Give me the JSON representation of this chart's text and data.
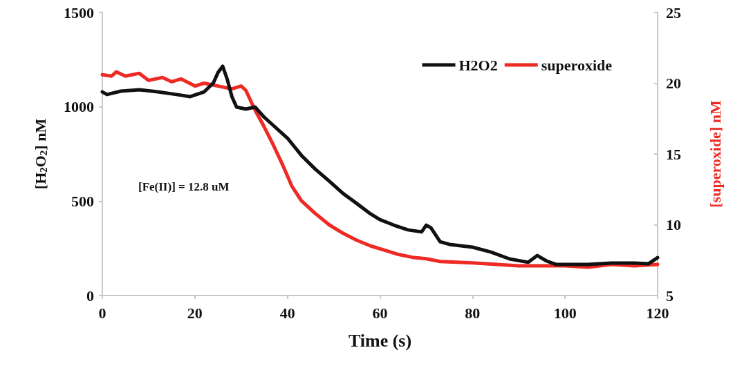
{
  "chart_data": {
    "type": "line",
    "xlabel": "Time (s)",
    "ylabel": "[H$_{2}$O$_{2}$] nM",
    "y2label": "[superoxide] nM",
    "xlim": [
      0,
      120
    ],
    "xticks": [
      0,
      20,
      40,
      60,
      80,
      100,
      120
    ],
    "ylim": [
      0,
      1500
    ],
    "yticks": [
      0,
      500,
      1000,
      1500
    ],
    "y2lim": [
      5,
      25
    ],
    "y2ticks": [
      5,
      10,
      15,
      20,
      25
    ],
    "legend": "top right",
    "grid": false,
    "marker": "none",
    "line_style": "solid",
    "annotations": [
      "[Fe(II)] = 12.8 uM"
    ],
    "series": [
      {
        "name": "H2O2",
        "color": "#111111",
        "x": [
          0,
          1,
          4,
          8,
          12,
          16,
          19,
          22,
          24,
          25,
          26,
          27,
          28,
          29,
          31,
          33,
          35,
          37,
          40,
          43,
          46,
          49,
          52,
          55,
          58,
          60,
          63,
          66,
          69,
          70,
          71,
          73,
          75,
          80,
          84,
          88,
          92,
          94,
          96,
          98,
          105,
          110,
          115,
          118,
          120
        ],
        "values": [
          1079,
          1065,
          1083,
          1090,
          1079,
          1065,
          1054,
          1079,
          1127,
          1182,
          1215,
          1145,
          1054,
          999,
          988,
          999,
          944,
          900,
          834,
          743,
          670,
          607,
          541,
          487,
          432,
          402,
          373,
          348,
          337,
          373,
          359,
          285,
          271,
          256,
          230,
          194,
          176,
          212,
          183,
          165,
          165,
          172,
          172,
          168,
          201
        ]
      },
      {
        "name": "superoxide",
        "color": "#ee2a24",
        "axis": "y2",
        "x": [
          0,
          2,
          3,
          5,
          8,
          10,
          13,
          15,
          17,
          20,
          22,
          25,
          28,
          30,
          31,
          33,
          35,
          37,
          39,
          41,
          43,
          46,
          49,
          52,
          55,
          58,
          61,
          64,
          67,
          70,
          73,
          80,
          90,
          100,
          105,
          110,
          115,
          120
        ],
        "values": [
          20.6,
          20.5,
          20.8,
          20.5,
          20.7,
          20.2,
          20.4,
          20.1,
          20.3,
          19.8,
          20.0,
          19.8,
          19.6,
          19.8,
          19.5,
          18.1,
          16.9,
          15.6,
          14.2,
          12.7,
          11.7,
          10.8,
          10.0,
          9.4,
          8.9,
          8.5,
          8.2,
          7.9,
          7.7,
          7.6,
          7.4,
          7.3,
          7.1,
          7.1,
          7.0,
          7.2,
          7.1,
          7.2
        ]
      }
    ]
  }
}
